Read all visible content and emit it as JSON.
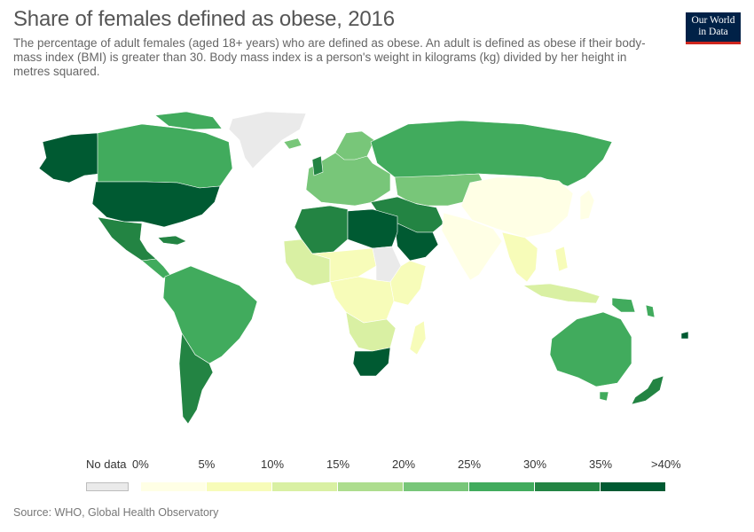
{
  "header": {
    "title": "Share of females defined as obese, 2016",
    "subtitle": "The percentage of adult females (aged 18+ years) who are defined as obese. An adult is defined as obese if their body-mass index (BMI) is greater than 30. Body mass index is a person's weight in kilograms (kg) divided by her height in metres squared."
  },
  "logo": {
    "line1": "Our World",
    "line2": "in Data"
  },
  "legend": {
    "no_data_label": "No data",
    "no_data_color": "#eaeaea",
    "bins": [
      {
        "label": "0%",
        "color": "#ffffe5"
      },
      {
        "label": "5%",
        "color": "#f7fcb9"
      },
      {
        "label": "10%",
        "color": "#d9f0a3"
      },
      {
        "label": "15%",
        "color": "#addd8e"
      },
      {
        "label": "20%",
        "color": "#78c679"
      },
      {
        "label": "25%",
        "color": "#41ab5d"
      },
      {
        "label": "30%",
        "color": "#238443"
      },
      {
        "label": "35%",
        "color": "#005a32"
      }
    ],
    "end_label": ">40%"
  },
  "footer": {
    "source": "Source: WHO, Global Health Observatory"
  },
  "map_colors": {
    "north_america_canada": "#41ab5d",
    "usa": "#005a32",
    "alaska": "#005a32",
    "greenland": "#eaeaea",
    "mexico": "#238443",
    "central_america": "#41ab5d",
    "south_america": "#41ab5d",
    "argentina_chile": "#238443",
    "europe": "#78c679",
    "russia": "#41ab5d",
    "north_africa": "#238443",
    "libya_egypt": "#005a32",
    "middle_east": "#238443",
    "saudi": "#005a32",
    "west_africa": "#d9f0a3",
    "sahel": "#f7fcb9",
    "sudan": "#eaeaea",
    "central_africa": "#f7fcb9",
    "east_africa": "#f7fcb9",
    "southern_africa": "#d9f0a3",
    "south_africa": "#005a32",
    "madagascar": "#f7fcb9",
    "central_asia": "#78c679",
    "china": "#ffffe5",
    "india": "#ffffe5",
    "southeast_asia": "#f7fcb9",
    "japan": "#ffffe5",
    "indonesia": "#d9f0a3",
    "australia": "#41ab5d",
    "new_zealand": "#238443",
    "png": "#41ab5d",
    "pacific": "#005a32"
  }
}
